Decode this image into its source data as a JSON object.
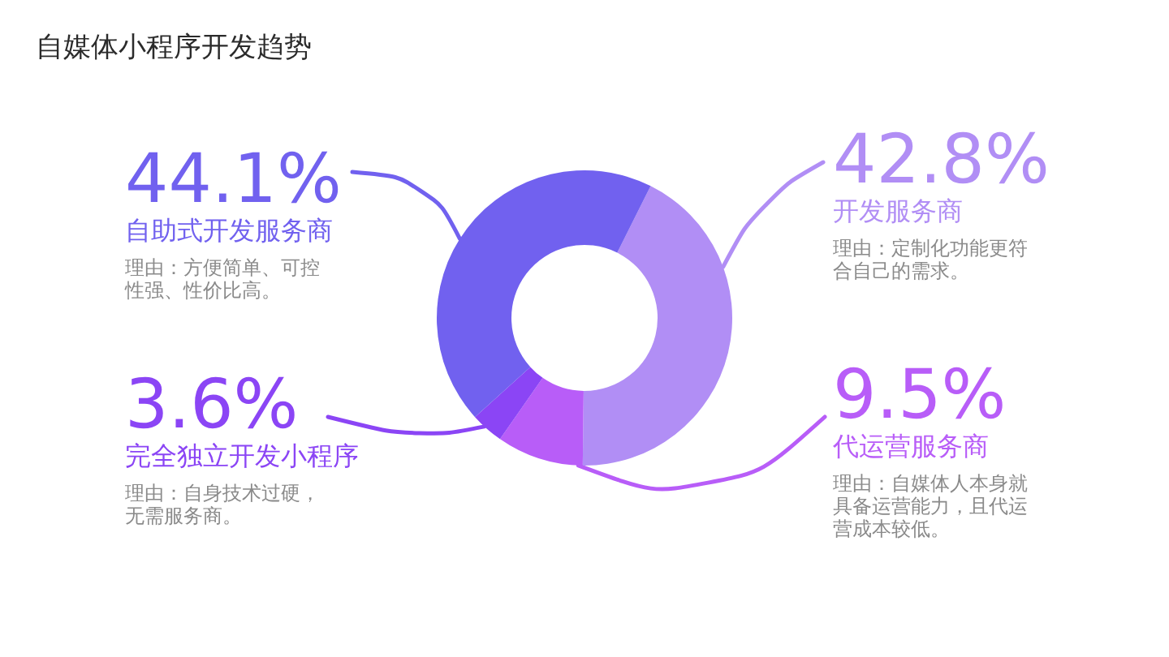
{
  "chart_data": {
    "type": "donut",
    "title": "自媒体小程序开发趋势",
    "categories": [
      "开发服务商",
      "代运营服务商",
      "完全独立开发小程序",
      "自助式开发服务商"
    ],
    "values": [
      42.8,
      9.5,
      3.6,
      44.1
    ],
    "colors": [
      "#b18ef5",
      "#b85df8",
      "#8b45f5",
      "#7161ef"
    ],
    "value_labels": [
      "42.8%",
      "9.5%",
      "3.6%",
      "44.1%"
    ],
    "annotations": [
      "理由：定制化功能更符合自己的需求。",
      "理由：自媒体人本身就具备运营能力，且代运营成本较低。",
      "理由：自身技术过硬，无需服务商。",
      "理由：方便简单、可控性强、性价比高。"
    ]
  }
}
